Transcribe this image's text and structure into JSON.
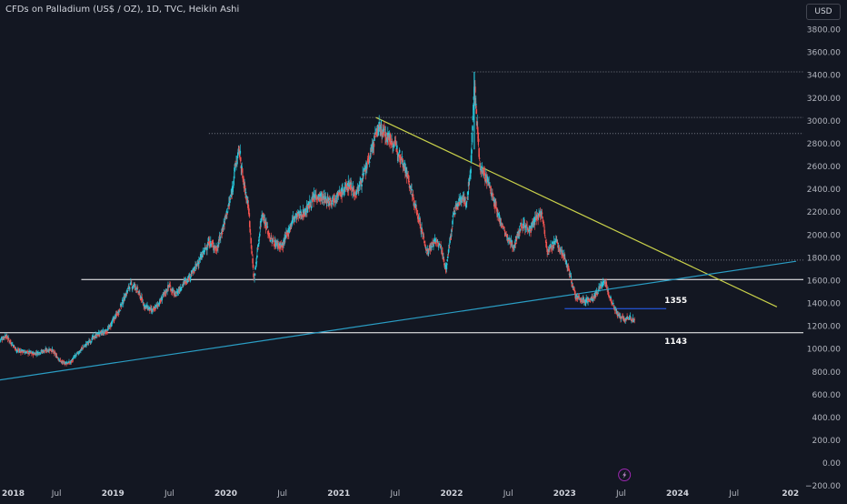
{
  "header": {
    "title": "CFDs on Palladium (US$ / OZ), 1D, TVC, Heikin Ashi",
    "currency_button": "USD"
  },
  "colors": {
    "background": "#131722",
    "up_candle": "#26c6da",
    "down_candle": "#ef5350",
    "trendline_down": "#c9d14a",
    "trendline_up": "#2a9dc4",
    "support_line": "#ffffff",
    "level_line_1355": "#2962ff",
    "dotted_level": "#787b86"
  },
  "icons": {
    "bottom_badge": "lightning-icon"
  },
  "chart_data": {
    "type": "candlestick",
    "title": "CFDs on Palladium (US$ / OZ), 1D, TVC, Heikin Ashi",
    "chart_style": "Heikin Ashi",
    "interval": "1D",
    "currency": "USD",
    "x_tick_labels": [
      "2018",
      "Jul",
      "2019",
      "Jul",
      "2020",
      "Jul",
      "2021",
      "Jul",
      "2022",
      "Jul",
      "2023",
      "Jul",
      "2024",
      "Jul",
      "202"
    ],
    "x_tick_years": [
      2018.0,
      2018.5,
      2019.0,
      2019.5,
      2020.0,
      2020.5,
      2021.0,
      2021.5,
      2022.0,
      2022.5,
      2023.0,
      2023.5,
      2024.0,
      2024.5,
      2025.0
    ],
    "xlim": [
      2018.0,
      2025.05
    ],
    "y_tick_labels": [
      "3800.00",
      "3600.00",
      "3400.00",
      "3200.00",
      "3000.00",
      "2800.00",
      "2600.00",
      "2400.00",
      "2200.00",
      "2000.00",
      "1800.00",
      "1600.00",
      "1400.00",
      "1200.00",
      "1000.00",
      "800.00",
      "600.00",
      "400.00",
      "200.00",
      "0.00",
      "−200.00"
    ],
    "y_ticks": [
      3800,
      3600,
      3400,
      3200,
      3000,
      2800,
      2600,
      2400,
      2200,
      2000,
      1800,
      1600,
      1400,
      1200,
      1000,
      800,
      600,
      400,
      200,
      0,
      -200
    ],
    "ylim": [
      -230,
      3980
    ],
    "price_path": {
      "t": [
        2018.0,
        2018.05,
        2018.15,
        2018.3,
        2018.45,
        2018.55,
        2018.62,
        2018.72,
        2018.85,
        2018.95,
        2019.05,
        2019.15,
        2019.2,
        2019.28,
        2019.35,
        2019.42,
        2019.5,
        2019.55,
        2019.62,
        2019.7,
        2019.78,
        2019.85,
        2019.92,
        2019.97,
        2020.05,
        2020.08,
        2020.12,
        2020.15,
        2020.2,
        2020.25,
        2020.32,
        2020.4,
        2020.5,
        2020.6,
        2020.7,
        2020.8,
        2020.9,
        2021.0,
        2021.1,
        2021.15,
        2021.25,
        2021.35,
        2021.4,
        2021.47,
        2021.55,
        2021.6,
        2021.65,
        2021.72,
        2021.78,
        2021.85,
        2021.9,
        2021.95,
        2022.02,
        2022.1,
        2022.13,
        2022.17,
        2022.2,
        2022.25,
        2022.33,
        2022.4,
        2022.5,
        2022.55,
        2022.62,
        2022.7,
        2022.75,
        2022.8,
        2022.85,
        2022.92,
        2023.0,
        2023.05,
        2023.1,
        2023.18,
        2023.25,
        2023.3,
        2023.35,
        2023.4,
        2023.47,
        2023.53,
        2023.58,
        2023.62
      ],
      "price": [
        1080,
        1120,
        990,
        960,
        1000,
        880,
        880,
        1000,
        1120,
        1160,
        1330,
        1560,
        1550,
        1380,
        1330,
        1420,
        1560,
        1470,
        1570,
        1660,
        1800,
        1940,
        1880,
        2050,
        2350,
        2580,
        2750,
        2500,
        2250,
        1600,
        2200,
        1950,
        1900,
        2150,
        2200,
        2350,
        2300,
        2350,
        2450,
        2350,
        2600,
        2950,
        2900,
        2820,
        2700,
        2550,
        2350,
        2100,
        1850,
        1950,
        1900,
        1700,
        2200,
        2350,
        2250,
        2600,
        3350,
        2600,
        2450,
        2200,
        1950,
        1900,
        2100,
        2050,
        2150,
        2200,
        1850,
        1950,
        1800,
        1650,
        1450,
        1420,
        1440,
        1520,
        1600,
        1460,
        1300,
        1250,
        1280,
        1240
      ]
    },
    "horizontal_levels": [
      {
        "price": 3430,
        "style": "dotted",
        "x_start": 2022.18
      },
      {
        "price": 3030,
        "style": "dotted",
        "x_start": 2021.2
      },
      {
        "price": 2890,
        "style": "dotted",
        "x_start": 2019.85
      },
      {
        "price": 1780,
        "style": "dotted",
        "x_start": 2022.45
      },
      {
        "price": 1610,
        "style": "solid",
        "x_start": 2018.72
      },
      {
        "price": 1143,
        "style": "solid",
        "x_start": 2018.0,
        "label": "1143"
      },
      {
        "price": 1355,
        "style": "solid-short",
        "x_start": 2023.0,
        "x_end": 2023.9,
        "label": "1355"
      }
    ],
    "trendlines": [
      {
        "name": "descending",
        "x1": 2021.33,
        "y1": 3030,
        "x2": 2024.88,
        "y2": 1370
      },
      {
        "name": "ascending",
        "x1": 2018.0,
        "y1": 730,
        "x2": 2025.05,
        "y2": 1770
      }
    ]
  }
}
